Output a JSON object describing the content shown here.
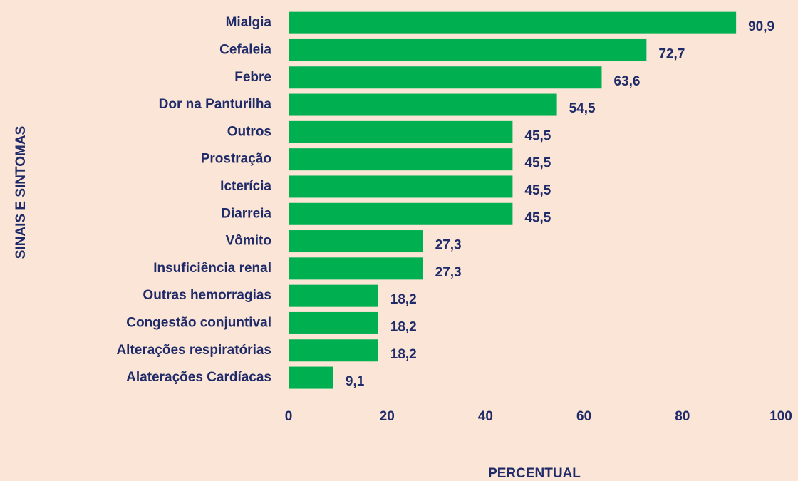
{
  "chart_data": {
    "type": "bar",
    "orientation": "horizontal",
    "categories": [
      "Mialgia",
      "Cefaleia",
      "Febre",
      "Dor na Panturilha",
      "Outros",
      "Prostração",
      "Icterícia",
      "Diarreia",
      "Vômito",
      "Insuficiência renal",
      "Outras hemorragias",
      "Congestão conjuntival",
      "Alterações respiratórias",
      "Alaterações Cardíacas"
    ],
    "values": [
      90.9,
      72.7,
      63.6,
      54.5,
      45.5,
      45.5,
      45.5,
      45.5,
      27.3,
      27.3,
      18.2,
      18.2,
      18.2,
      9.1
    ],
    "value_labels": [
      "90,9",
      "72,7",
      "63,6",
      "54,5",
      "45,5",
      "45,5",
      "45,5",
      "45,5",
      "27,3",
      "27,3",
      "18,2",
      "18,2",
      "18,2",
      "9,1"
    ],
    "color": "#00b050",
    "xlim": [
      0,
      100
    ],
    "xticks": [
      0,
      20,
      40,
      60,
      80,
      100
    ],
    "xlabel": "PERCENTUAL",
    "ylabel": "SINAIS E SINTOMAS",
    "grid": false
  }
}
